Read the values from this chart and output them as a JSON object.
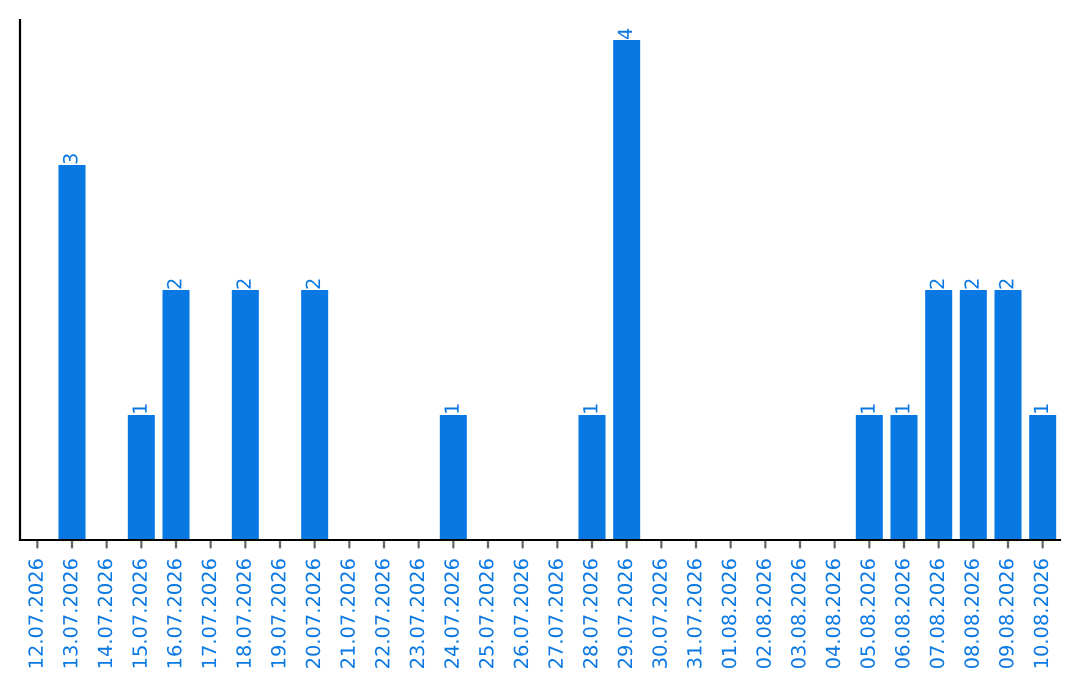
{
  "chart_data": {
    "type": "bar",
    "categories": [
      "12.07.2026",
      "13.07.2026",
      "14.07.2026",
      "15.07.2026",
      "16.07.2026",
      "17.07.2026",
      "18.07.2026",
      "19.07.2026",
      "20.07.2026",
      "21.07.2026",
      "22.07.2026",
      "23.07.2026",
      "24.07.2026",
      "25.07.2026",
      "26.07.2026",
      "27.07.2026",
      "28.07.2026",
      "29.07.2026",
      "30.07.2026",
      "31.07.2026",
      "01.08.2026",
      "02.08.2026",
      "03.08.2026",
      "04.08.2026",
      "05.08.2026",
      "06.08.2026",
      "07.08.2026",
      "08.08.2026",
      "09.08.2026",
      "10.08.2026"
    ],
    "values": [
      0,
      3,
      0,
      1,
      2,
      0,
      2,
      0,
      2,
      0,
      0,
      0,
      1,
      0,
      0,
      0,
      1,
      4,
      0,
      0,
      0,
      0,
      0,
      0,
      1,
      1,
      2,
      2,
      2,
      1
    ],
    "value_labels": [
      null,
      "3",
      null,
      "1",
      "2",
      null,
      "2",
      null,
      "2",
      null,
      null,
      null,
      "1",
      null,
      null,
      null,
      "1",
      "4",
      null,
      null,
      null,
      null,
      null,
      null,
      "1",
      "1",
      "2",
      "2",
      "2",
      "1"
    ],
    "color": "#0a78e2",
    "ylim": [
      0,
      4.16
    ],
    "tick_labels": "x",
    "grid": false,
    "legend": false
  }
}
